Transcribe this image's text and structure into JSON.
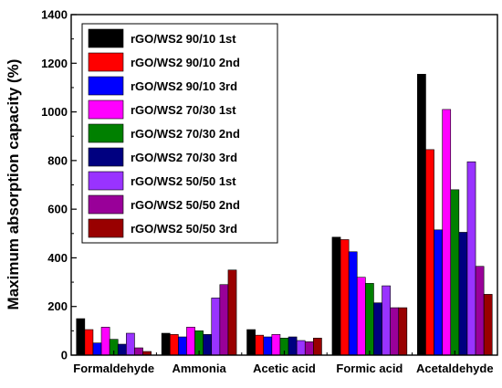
{
  "chart_data": {
    "type": "bar",
    "ylabel": "Maximum absorption capacity (%)",
    "xlabel": "",
    "ylim": [
      0,
      1400
    ],
    "yticks": [
      0,
      200,
      400,
      600,
      800,
      1000,
      1200,
      1400
    ],
    "categories": [
      "Formaldehyde",
      "Ammonia",
      "Acetic acid",
      "Formic acid",
      "Acetaldehyde"
    ],
    "legend_position": "top-left",
    "series": [
      {
        "name": "rGO/WS2 90/10 1st",
        "color": "#000000",
        "values": [
          150,
          90,
          105,
          485,
          1155
        ]
      },
      {
        "name": "rGO/WS2 90/10 2nd",
        "color": "#ff0000",
        "values": [
          105,
          85,
          82,
          475,
          845
        ]
      },
      {
        "name": "rGO/WS2 90/10 3rd",
        "color": "#0000ff",
        "values": [
          50,
          75,
          75,
          425,
          515
        ]
      },
      {
        "name": "rGO/WS2 70/30 1st",
        "color": "#ff00ff",
        "values": [
          115,
          115,
          85,
          320,
          1010
        ]
      },
      {
        "name": "rGO/WS2 70/30 2nd",
        "color": "#008000",
        "values": [
          65,
          100,
          70,
          295,
          680
        ]
      },
      {
        "name": "rGO/WS2 70/30 3rd",
        "color": "#000080",
        "values": [
          45,
          85,
          75,
          215,
          505
        ]
      },
      {
        "name": "rGO/WS2 50/50 1st",
        "color": "#9933ff",
        "values": [
          90,
          235,
          60,
          285,
          795
        ]
      },
      {
        "name": "rGO/WS2 50/50 2nd",
        "color": "#990099",
        "values": [
          30,
          290,
          55,
          195,
          365
        ]
      },
      {
        "name": "rGO/WS2 50/50 3rd",
        "color": "#990000",
        "values": [
          15,
          350,
          70,
          195,
          250
        ]
      }
    ]
  }
}
